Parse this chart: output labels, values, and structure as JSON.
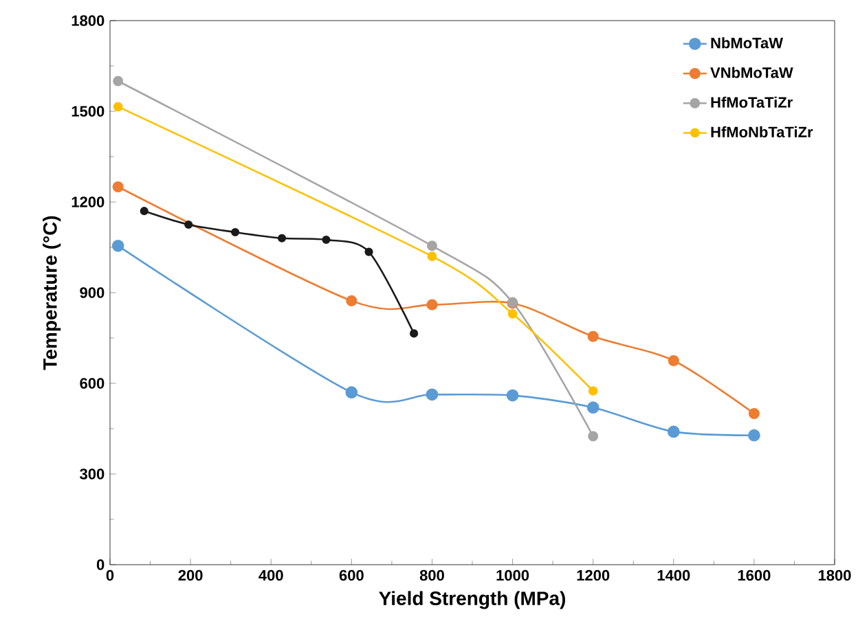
{
  "chart_data": {
    "type": "line",
    "xlabel": "Yield Strength (MPa)",
    "ylabel": "Temperature (°C)",
    "xlim": [
      0,
      1800
    ],
    "ylim": [
      0,
      1800
    ],
    "xticks": [
      0,
      200,
      400,
      600,
      800,
      1000,
      1200,
      1400,
      1600,
      1800
    ],
    "yticks": [
      0,
      300,
      600,
      900,
      1200,
      1500,
      1800
    ],
    "grid": false,
    "legend": "top right",
    "marker": "circle",
    "line_style": "solid",
    "series": [
      {
        "name": "NbMoTaW",
        "color": "#5b9bd5",
        "x": [
          20,
          600,
          800,
          1000,
          1200,
          1400,
          1600
        ],
        "values": [
          1055,
          570,
          563,
          560,
          520,
          440,
          428
        ]
      },
      {
        "name": "VNbMoTaW",
        "color": "#ed7d31",
        "x": [
          20,
          600,
          800,
          1000,
          1200,
          1400,
          1600
        ],
        "values": [
          1250,
          873,
          860,
          865,
          755,
          675,
          500
        ]
      },
      {
        "name": "HfMoTaTiZr",
        "color": "#a5a5a5",
        "x": [
          20,
          800,
          1000,
          1200
        ],
        "values": [
          1600,
          1055,
          868,
          425
        ]
      },
      {
        "name": "HfMoNbTaTiZr",
        "color": "#ffc000",
        "x": [
          20,
          800,
          1000,
          1200
        ],
        "values": [
          1515,
          1020,
          830,
          575
        ]
      },
      {
        "color": "#1a1a1a",
        "x": [
          85,
          195,
          311,
          427,
          537,
          643,
          755
        ],
        "values": [
          1170,
          1125,
          1100,
          1080,
          1075,
          1035,
          765
        ]
      }
    ]
  }
}
